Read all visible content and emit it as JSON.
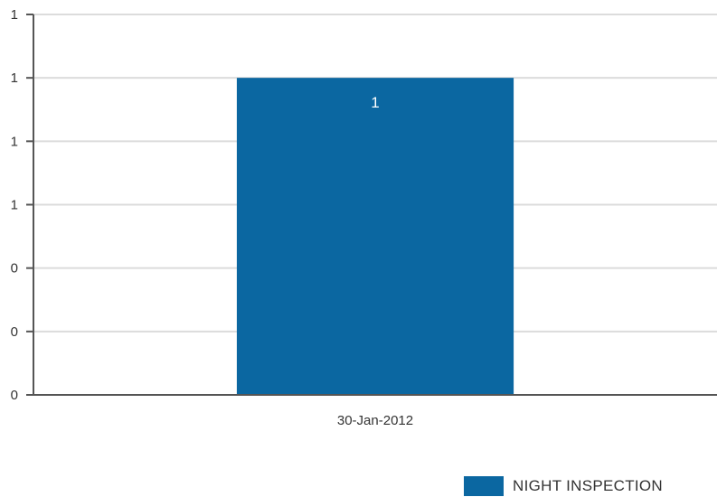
{
  "chart_data": {
    "type": "bar",
    "categories": [
      "30-Jan-2012"
    ],
    "series": [
      {
        "name": "NIGHT INSPECTION",
        "values": [
          1
        ],
        "color": "#0b67a1"
      }
    ],
    "data_labels": [
      "1"
    ],
    "y_tick_labels": [
      "0",
      "0",
      "0",
      "1",
      "1",
      "1",
      "1"
    ],
    "ylim": [
      0,
      1.2
    ],
    "y_ticks": [
      0,
      0.2,
      0.4,
      0.6,
      0.8,
      1.0,
      1.2
    ],
    "grid": true,
    "legend_position": "bottom-right",
    "title": "",
    "xlabel": "",
    "ylabel": ""
  }
}
